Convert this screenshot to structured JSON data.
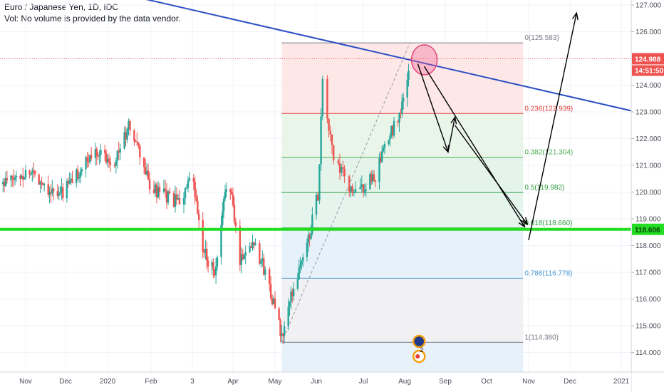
{
  "header": {
    "title": "Euro / Japanese Yen, 1D, IDC",
    "volume_note": "Vol: No volume is provided by the data vendor."
  },
  "price_axis": {
    "ticks": [
      "127.000",
      "126.000",
      "125.000",
      "124.000",
      "123.000",
      "122.000",
      "121.000",
      "120.000",
      "119.000",
      "118.000",
      "117.000",
      "116.000",
      "115.000",
      "114.000"
    ],
    "current_price": "124.988",
    "countdown": "14:51:50",
    "support_label": "118.606"
  },
  "time_axis": {
    "ticks": [
      "Nov",
      "Dec",
      "2020",
      "Feb",
      "3",
      "Apr",
      "May",
      "Jun",
      "Jul",
      "Aug",
      "Sep",
      "Oct",
      "Nov",
      "Dec",
      "2021"
    ]
  },
  "fib_levels": [
    {
      "label": "0(125.583)",
      "value": 125.583,
      "color": "#787b86"
    },
    {
      "label": "0.236(122.939)",
      "value": 122.939,
      "color": "#e03a3a"
    },
    {
      "label": "0.382(121.304)",
      "value": 121.304,
      "color": "#4caf50"
    },
    {
      "label": "0.5(119.982)",
      "value": 119.982,
      "color": "#2e9e3e"
    },
    {
      "label": "0.618(118.660)",
      "value": 118.66,
      "color": "#2e9e3e"
    },
    {
      "label": "0.786(116.778)",
      "value": 116.778,
      "color": "#4a9ad4"
    },
    {
      "label": "1(114.380)",
      "value": 114.38,
      "color": "#787b86"
    }
  ],
  "events": {
    "badge_count": "2"
  },
  "colors": {
    "up": "#26a69a",
    "down": "#ef5350",
    "trendline": "#2a4fc4",
    "support": "#22dd22",
    "current_price_bg": "#ef5350"
  },
  "chart_data": {
    "type": "candlestick",
    "symbol": "EURJPY",
    "interval": "1D",
    "y_axis_range": [
      113.5,
      127.3
    ],
    "close_path": [
      {
        "x": "2019-10-15",
        "y": 120.3
      },
      {
        "x": "2019-11-05",
        "y": 120.8
      },
      {
        "x": "2019-11-25",
        "y": 119.8
      },
      {
        "x": "2019-12-15",
        "y": 121.0
      },
      {
        "x": "2019-12-24",
        "y": 121.6
      },
      {
        "x": "2020-01-05",
        "y": 121.1
      },
      {
        "x": "2020-01-17",
        "y": 122.5
      },
      {
        "x": "2020-02-01",
        "y": 120.1
      },
      {
        "x": "2020-02-20",
        "y": 119.6
      },
      {
        "x": "2020-03-01",
        "y": 120.5
      },
      {
        "x": "2020-03-09",
        "y": 117.8
      },
      {
        "x": "2020-03-19",
        "y": 117.0
      },
      {
        "x": "2020-03-28",
        "y": 120.8
      },
      {
        "x": "2020-04-06",
        "y": 117.5
      },
      {
        "x": "2020-04-16",
        "y": 118.2
      },
      {
        "x": "2020-04-27",
        "y": 116.5
      },
      {
        "x": "2020-05-06",
        "y": 114.5
      },
      {
        "x": "2020-05-15",
        "y": 116.5
      },
      {
        "x": "2020-05-25",
        "y": 118.0
      },
      {
        "x": "2020-06-02",
        "y": 119.9
      },
      {
        "x": "2020-06-05",
        "y": 124.0
      },
      {
        "x": "2020-06-12",
        "y": 121.2
      },
      {
        "x": "2020-06-25",
        "y": 119.9
      },
      {
        "x": "2020-07-10",
        "y": 120.6
      },
      {
        "x": "2020-07-20",
        "y": 122.0
      },
      {
        "x": "2020-07-31",
        "y": 123.3
      },
      {
        "x": "2020-08-05",
        "y": 125.0
      }
    ],
    "projection_arrows": [
      {
        "from": {
          "x": "2020-08-11",
          "y": 124.8
        },
        "to": {
          "x": "2020-09-03",
          "y": 121.5
        }
      },
      {
        "from": {
          "x": "2020-09-03",
          "y": 121.5
        },
        "to": {
          "x": "2020-09-08",
          "y": 122.8
        }
      },
      {
        "from": {
          "x": "2020-08-16",
          "y": 124.7
        },
        "to": {
          "x": "2020-10-29",
          "y": 118.7
        }
      },
      {
        "from": {
          "x": "2020-09-08",
          "y": 122.5
        },
        "to": {
          "x": "2020-10-31",
          "y": 118.8
        }
      },
      {
        "from": {
          "x": "2020-11-01",
          "y": 118.2
        },
        "to": {
          "x": "2020-12-05",
          "y": 126.7
        }
      }
    ],
    "trendline": {
      "from": {
        "x": "2019-12-10",
        "y": 127.8
      },
      "to": {
        "x": "2021-01-10",
        "y": 123.0
      }
    },
    "support_level": 118.606,
    "current_price": 124.988
  }
}
